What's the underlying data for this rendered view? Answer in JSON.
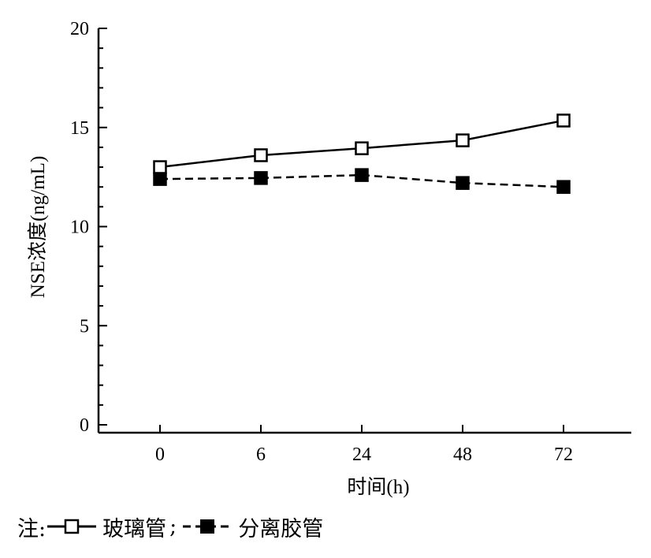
{
  "chart_data": {
    "type": "line",
    "categories": [
      "0",
      "6",
      "24",
      "48",
      "72"
    ],
    "ylabel": "NSE浓度(ng/mL)",
    "xlabel": "时间(h)",
    "ylim": [
      0,
      20
    ],
    "yticks": [
      0,
      5,
      10,
      15,
      20
    ],
    "series": [
      {
        "name": "玻璃管",
        "values": [
          13.0,
          13.6,
          13.95,
          14.35,
          15.35
        ],
        "line_style": "solid",
        "marker": "open-square"
      },
      {
        "name": "分离胶管",
        "values": [
          12.4,
          12.45,
          12.6,
          12.2,
          12.0
        ],
        "line_style": "dashed",
        "marker": "filled-square"
      }
    ],
    "grid": false,
    "legend_position": "bottom-left"
  },
  "legend": {
    "prefix": "注:",
    "separator": ";"
  }
}
